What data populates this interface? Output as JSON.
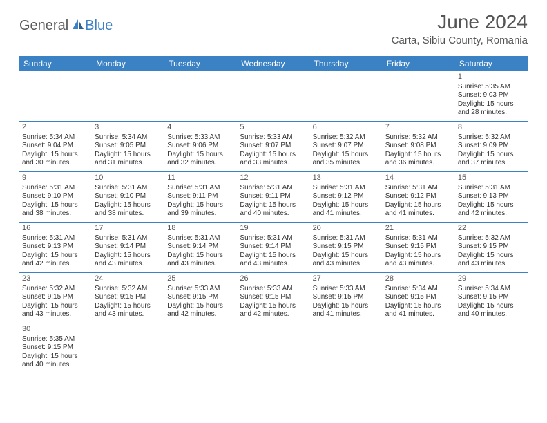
{
  "logo": {
    "text1": "General",
    "text2": "Blue"
  },
  "title": "June 2024",
  "location": "Carta, Sibiu County, Romania",
  "colors": {
    "header_bg": "#3b82c4",
    "header_text": "#ffffff",
    "border": "#3b82c4",
    "body_text": "#333333",
    "title_text": "#555555",
    "empty_bg": "#f5f5f5"
  },
  "dayHeaders": [
    "Sunday",
    "Monday",
    "Tuesday",
    "Wednesday",
    "Thursday",
    "Friday",
    "Saturday"
  ],
  "weeks": [
    [
      null,
      null,
      null,
      null,
      null,
      null,
      {
        "n": "1",
        "sr": "Sunrise: 5:35 AM",
        "ss": "Sunset: 9:03 PM",
        "d1": "Daylight: 15 hours",
        "d2": "and 28 minutes."
      }
    ],
    [
      {
        "n": "2",
        "sr": "Sunrise: 5:34 AM",
        "ss": "Sunset: 9:04 PM",
        "d1": "Daylight: 15 hours",
        "d2": "and 30 minutes."
      },
      {
        "n": "3",
        "sr": "Sunrise: 5:34 AM",
        "ss": "Sunset: 9:05 PM",
        "d1": "Daylight: 15 hours",
        "d2": "and 31 minutes."
      },
      {
        "n": "4",
        "sr": "Sunrise: 5:33 AM",
        "ss": "Sunset: 9:06 PM",
        "d1": "Daylight: 15 hours",
        "d2": "and 32 minutes."
      },
      {
        "n": "5",
        "sr": "Sunrise: 5:33 AM",
        "ss": "Sunset: 9:07 PM",
        "d1": "Daylight: 15 hours",
        "d2": "and 33 minutes."
      },
      {
        "n": "6",
        "sr": "Sunrise: 5:32 AM",
        "ss": "Sunset: 9:07 PM",
        "d1": "Daylight: 15 hours",
        "d2": "and 35 minutes."
      },
      {
        "n": "7",
        "sr": "Sunrise: 5:32 AM",
        "ss": "Sunset: 9:08 PM",
        "d1": "Daylight: 15 hours",
        "d2": "and 36 minutes."
      },
      {
        "n": "8",
        "sr": "Sunrise: 5:32 AM",
        "ss": "Sunset: 9:09 PM",
        "d1": "Daylight: 15 hours",
        "d2": "and 37 minutes."
      }
    ],
    [
      {
        "n": "9",
        "sr": "Sunrise: 5:31 AM",
        "ss": "Sunset: 9:10 PM",
        "d1": "Daylight: 15 hours",
        "d2": "and 38 minutes."
      },
      {
        "n": "10",
        "sr": "Sunrise: 5:31 AM",
        "ss": "Sunset: 9:10 PM",
        "d1": "Daylight: 15 hours",
        "d2": "and 38 minutes."
      },
      {
        "n": "11",
        "sr": "Sunrise: 5:31 AM",
        "ss": "Sunset: 9:11 PM",
        "d1": "Daylight: 15 hours",
        "d2": "and 39 minutes."
      },
      {
        "n": "12",
        "sr": "Sunrise: 5:31 AM",
        "ss": "Sunset: 9:11 PM",
        "d1": "Daylight: 15 hours",
        "d2": "and 40 minutes."
      },
      {
        "n": "13",
        "sr": "Sunrise: 5:31 AM",
        "ss": "Sunset: 9:12 PM",
        "d1": "Daylight: 15 hours",
        "d2": "and 41 minutes."
      },
      {
        "n": "14",
        "sr": "Sunrise: 5:31 AM",
        "ss": "Sunset: 9:12 PM",
        "d1": "Daylight: 15 hours",
        "d2": "and 41 minutes."
      },
      {
        "n": "15",
        "sr": "Sunrise: 5:31 AM",
        "ss": "Sunset: 9:13 PM",
        "d1": "Daylight: 15 hours",
        "d2": "and 42 minutes."
      }
    ],
    [
      {
        "n": "16",
        "sr": "Sunrise: 5:31 AM",
        "ss": "Sunset: 9:13 PM",
        "d1": "Daylight: 15 hours",
        "d2": "and 42 minutes."
      },
      {
        "n": "17",
        "sr": "Sunrise: 5:31 AM",
        "ss": "Sunset: 9:14 PM",
        "d1": "Daylight: 15 hours",
        "d2": "and 43 minutes."
      },
      {
        "n": "18",
        "sr": "Sunrise: 5:31 AM",
        "ss": "Sunset: 9:14 PM",
        "d1": "Daylight: 15 hours",
        "d2": "and 43 minutes."
      },
      {
        "n": "19",
        "sr": "Sunrise: 5:31 AM",
        "ss": "Sunset: 9:14 PM",
        "d1": "Daylight: 15 hours",
        "d2": "and 43 minutes."
      },
      {
        "n": "20",
        "sr": "Sunrise: 5:31 AM",
        "ss": "Sunset: 9:15 PM",
        "d1": "Daylight: 15 hours",
        "d2": "and 43 minutes."
      },
      {
        "n": "21",
        "sr": "Sunrise: 5:31 AM",
        "ss": "Sunset: 9:15 PM",
        "d1": "Daylight: 15 hours",
        "d2": "and 43 minutes."
      },
      {
        "n": "22",
        "sr": "Sunrise: 5:32 AM",
        "ss": "Sunset: 9:15 PM",
        "d1": "Daylight: 15 hours",
        "d2": "and 43 minutes."
      }
    ],
    [
      {
        "n": "23",
        "sr": "Sunrise: 5:32 AM",
        "ss": "Sunset: 9:15 PM",
        "d1": "Daylight: 15 hours",
        "d2": "and 43 minutes."
      },
      {
        "n": "24",
        "sr": "Sunrise: 5:32 AM",
        "ss": "Sunset: 9:15 PM",
        "d1": "Daylight: 15 hours",
        "d2": "and 43 minutes."
      },
      {
        "n": "25",
        "sr": "Sunrise: 5:33 AM",
        "ss": "Sunset: 9:15 PM",
        "d1": "Daylight: 15 hours",
        "d2": "and 42 minutes."
      },
      {
        "n": "26",
        "sr": "Sunrise: 5:33 AM",
        "ss": "Sunset: 9:15 PM",
        "d1": "Daylight: 15 hours",
        "d2": "and 42 minutes."
      },
      {
        "n": "27",
        "sr": "Sunrise: 5:33 AM",
        "ss": "Sunset: 9:15 PM",
        "d1": "Daylight: 15 hours",
        "d2": "and 41 minutes."
      },
      {
        "n": "28",
        "sr": "Sunrise: 5:34 AM",
        "ss": "Sunset: 9:15 PM",
        "d1": "Daylight: 15 hours",
        "d2": "and 41 minutes."
      },
      {
        "n": "29",
        "sr": "Sunrise: 5:34 AM",
        "ss": "Sunset: 9:15 PM",
        "d1": "Daylight: 15 hours",
        "d2": "and 40 minutes."
      }
    ],
    [
      {
        "n": "30",
        "sr": "Sunrise: 5:35 AM",
        "ss": "Sunset: 9:15 PM",
        "d1": "Daylight: 15 hours",
        "d2": "and 40 minutes."
      },
      null,
      null,
      null,
      null,
      null,
      null
    ]
  ]
}
